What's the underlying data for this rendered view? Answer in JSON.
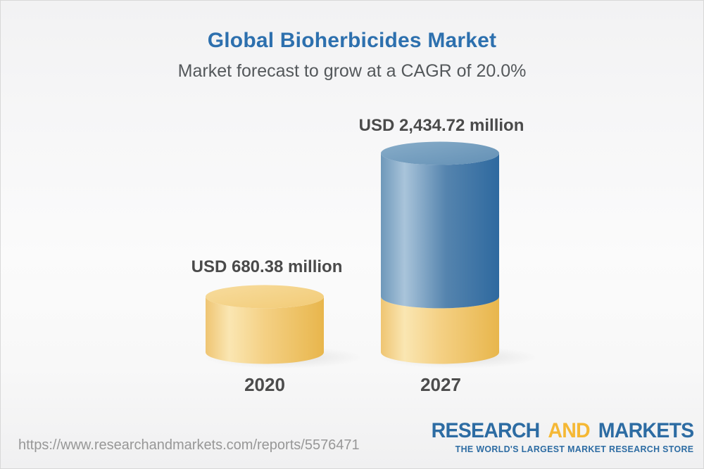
{
  "header": {
    "title": "Global Bioherbicides Market",
    "subtitle": "Market forecast to grow at a CAGR of 20.0%",
    "title_color": "#2d70ae",
    "subtitle_color": "#54585b"
  },
  "chart_data": {
    "type": "bar",
    "variant": "3d-cylinder",
    "categories": [
      "2020",
      "2027"
    ],
    "values": [
      680.38,
      2434.72
    ],
    "unit": "USD million",
    "value_labels": [
      "USD 680.38 million",
      "USD 2,434.72 million"
    ],
    "title": "Global Bioherbicides Market",
    "subtitle": "Market forecast to grow at a CAGR of 20.0%",
    "cagr_percent": 20.0,
    "legend": "none",
    "grid": false,
    "colors": {
      "base_segment_mid": "#f4d084",
      "base_segment_left": "#efc572",
      "base_segment_highlight": "#fae6b2",
      "base_segment_right": "#e8b64c",
      "base_top_light": "#f7dc9e",
      "base_top_dark": "#f2cb76",
      "growth_segment_left": "#6e98ba",
      "growth_segment_highlight": "#a9c4da",
      "growth_segment_mid": "#5584ae",
      "growth_segment_right": "#2e699f",
      "growth_top_light": "#88adc9",
      "growth_top_dark": "#6390b5",
      "label_text": "#4a4a4a"
    }
  },
  "footer": {
    "url": "https://www.researchandmarkets.com/reports/5576471",
    "logo": {
      "word1": "RESEARCH",
      "word2": "AND",
      "word3": "MARKETS",
      "tagline": "THE WORLD'S LARGEST MARKET RESEARCH STORE",
      "blue": "#2d6ca3",
      "gold": "#f5b835"
    }
  }
}
